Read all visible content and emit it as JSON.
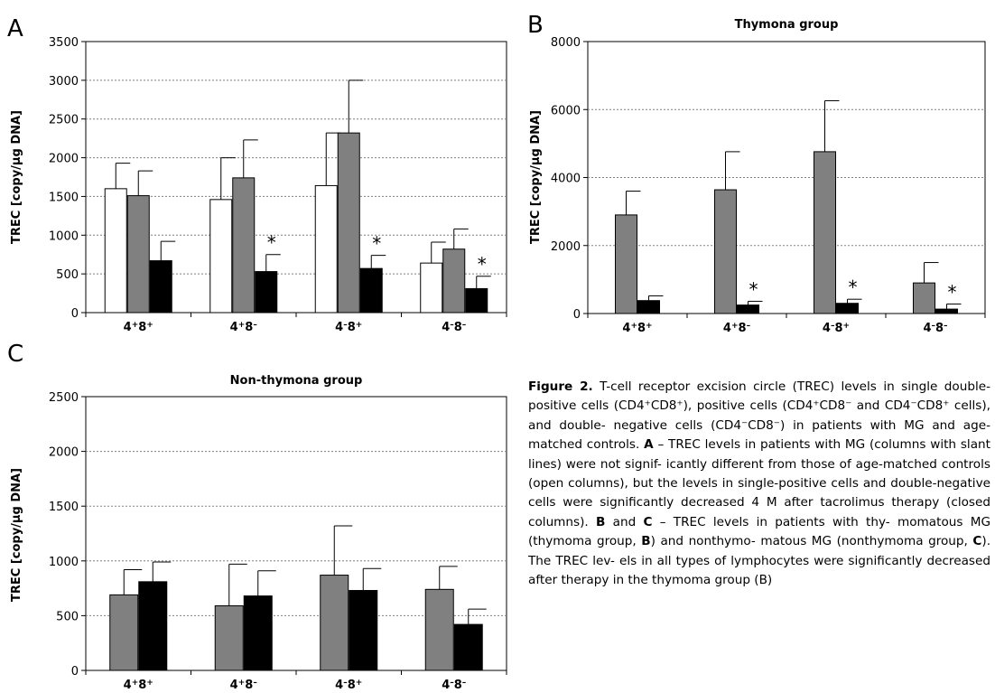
{
  "colors": {
    "control": "#ffffff",
    "before": "#808080",
    "after": "#000000",
    "grid": "#808080"
  },
  "chart_data": [
    {
      "type": "bar",
      "panel_letter": "A",
      "title": "",
      "ylabel": "TREC [copy/µg DNA]",
      "ylim": [
        0,
        3500
      ],
      "yticks": [
        0,
        500,
        1000,
        1500,
        2000,
        2500,
        3000,
        3500
      ],
      "grid": true,
      "categories": [
        {
          "base": "4",
          "sup1": "+",
          "mid": "8",
          "sup2": "+"
        },
        {
          "base": "4",
          "sup1": "+",
          "mid": "8",
          "sup2": "–"
        },
        {
          "base": "4",
          "sup1": "–",
          "mid": "8",
          "sup2": "+"
        },
        {
          "base": "4",
          "sup1": "–",
          "mid": "8",
          "sup2": "–"
        }
      ],
      "series": [
        {
          "color": "#ffffff",
          "values": [
            1600,
            1460,
            1640,
            640
          ],
          "errors": [
            330,
            540,
            680,
            270
          ]
        },
        {
          "color": "#808080",
          "values": [
            1510,
            1740,
            2320,
            820
          ],
          "errors": [
            320,
            490,
            680,
            260
          ]
        },
        {
          "color": "#000000",
          "values": [
            670,
            530,
            570,
            310
          ],
          "errors": [
            250,
            220,
            170,
            160
          ]
        }
      ],
      "asterisks": [
        {
          "category": 1,
          "series": 2,
          "text": "*"
        },
        {
          "category": 2,
          "series": 2,
          "text": "*"
        },
        {
          "category": 3,
          "series": 2,
          "text": "*"
        }
      ]
    },
    {
      "type": "bar",
      "panel_letter": "B",
      "title": "Thymona group",
      "ylabel": "TREC [copy/µg DNA]",
      "ylim": [
        0,
        8000
      ],
      "yticks": [
        0,
        2000,
        4000,
        6000,
        8000
      ],
      "grid": true,
      "categories": [
        {
          "base": "4",
          "sup1": "+",
          "mid": "8",
          "sup2": "+"
        },
        {
          "base": "4",
          "sup1": "+",
          "mid": "8",
          "sup2": "–"
        },
        {
          "base": "4",
          "sup1": "–",
          "mid": "8",
          "sup2": "+"
        },
        {
          "base": "4",
          "sup1": "–",
          "mid": "8",
          "sup2": "–"
        }
      ],
      "series": [
        {
          "color": "#808080",
          "values": [
            2900,
            3640,
            4760,
            900
          ],
          "errors": [
            700,
            1120,
            1500,
            600
          ]
        },
        {
          "color": "#000000",
          "values": [
            380,
            250,
            300,
            130
          ],
          "errors": [
            140,
            110,
            120,
            150
          ]
        }
      ],
      "asterisks": [
        {
          "category": 1,
          "series": 1,
          "text": "*"
        },
        {
          "category": 2,
          "series": 1,
          "text": "*"
        },
        {
          "category": 3,
          "series": 1,
          "text": "*"
        }
      ]
    },
    {
      "type": "bar",
      "panel_letter": "C",
      "title": "Non-thymona group",
      "ylabel": "TREC [copy/µg DNA]",
      "ylim": [
        0,
        2500
      ],
      "yticks": [
        0,
        500,
        1000,
        1500,
        2000,
        2500
      ],
      "grid": true,
      "categories": [
        {
          "base": "4",
          "sup1": "+",
          "mid": "8",
          "sup2": "+"
        },
        {
          "base": "4",
          "sup1": "+",
          "mid": "8",
          "sup2": "–"
        },
        {
          "base": "4",
          "sup1": "–",
          "mid": "8",
          "sup2": "+"
        },
        {
          "base": "4",
          "sup1": "–",
          "mid": "8",
          "sup2": "–"
        }
      ],
      "series": [
        {
          "color": "#808080",
          "values": [
            690,
            590,
            870,
            740
          ],
          "errors": [
            230,
            380,
            450,
            210
          ]
        },
        {
          "color": "#000000",
          "values": [
            810,
            680,
            730,
            420
          ],
          "errors": [
            180,
            230,
            200,
            140
          ]
        }
      ],
      "asterisks": []
    }
  ],
  "caption": {
    "figure_label": "Figure 2.",
    "lines": [
      "T-cell receptor excision circle (TREC) levels",
      "in single double-positive cells (CD4⁺CD8⁺), positive",
      "cells (CD4⁺CD8⁻ and CD4⁻CD8⁺ cells), and double-",
      "negative cells (CD4⁻CD8⁻) in patients with MG and",
      "age-matched controls.",
      "– TREC levels in patients",
      "with MG (columns with slant lines) were not signif-",
      "icantly different from those of age-matched controls",
      "(open columns), but the levels in single-positive cells",
      "and double-negative cells were significantly",
      "decreased 4 M after tacrolimus therapy (closed",
      "columns).",
      "and",
      "– TREC levels in patients with thy-",
      "momatous MG (thymoma group,",
      ") and nonthymo-",
      "matous MG (nonthymoma group,",
      "). The TREC lev-",
      "els in all types of lymphocytes were significantly",
      "decreased after therapy in the thymoma group (B)"
    ],
    "refs": {
      "A": "A",
      "B": "B",
      "C": "C"
    }
  }
}
